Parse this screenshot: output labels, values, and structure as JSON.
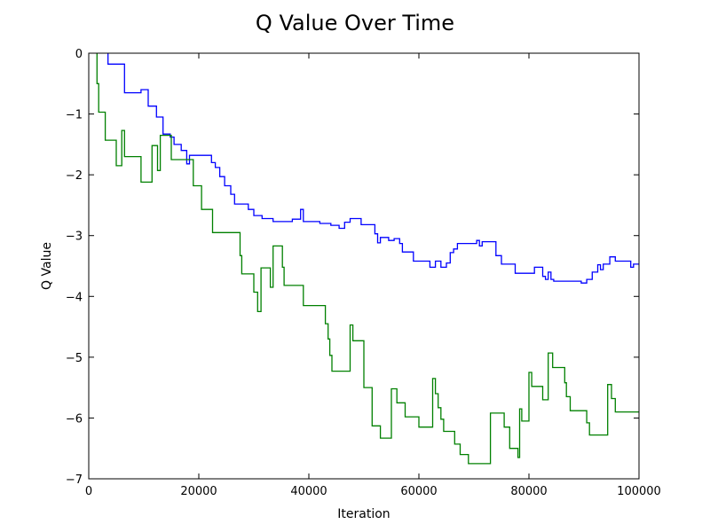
{
  "chart_data": {
    "type": "line",
    "title": "Q Value Over Time",
    "xlabel": "Iteration",
    "ylabel": "Q Value",
    "xlim": [
      0,
      100000
    ],
    "ylim": [
      -7,
      0
    ],
    "xticks": [
      0,
      20000,
      40000,
      60000,
      80000,
      100000
    ],
    "xtick_labels": [
      "0",
      "20000",
      "40000",
      "60000",
      "80000",
      "100000"
    ],
    "yticks": [
      0,
      -1,
      -2,
      -3,
      -4,
      -5,
      -6,
      -7
    ],
    "ytick_labels": [
      "0",
      "−1",
      "−2",
      "−3",
      "−4",
      "−5",
      "−6",
      "−7"
    ],
    "grid": false,
    "legend": "none",
    "step": true,
    "series": [
      {
        "color": "#0000ff",
        "points": [
          [
            3500,
            0
          ],
          [
            3500,
            -0.18
          ],
          [
            6500,
            -0.18
          ],
          [
            6500,
            -0.65
          ],
          [
            9500,
            -0.65
          ],
          [
            9500,
            -0.6
          ],
          [
            10800,
            -0.6
          ],
          [
            10800,
            -0.87
          ],
          [
            12300,
            -0.87
          ],
          [
            12300,
            -1.05
          ],
          [
            13500,
            -1.05
          ],
          [
            13500,
            -1.33
          ],
          [
            14800,
            -1.33
          ],
          [
            14800,
            -1.38
          ],
          [
            15500,
            -1.38
          ],
          [
            15500,
            -1.5
          ],
          [
            16800,
            -1.5
          ],
          [
            16800,
            -1.6
          ],
          [
            17800,
            -1.6
          ],
          [
            17800,
            -1.82
          ],
          [
            18300,
            -1.82
          ],
          [
            18300,
            -1.68
          ],
          [
            22300,
            -1.68
          ],
          [
            22300,
            -1.8
          ],
          [
            23000,
            -1.8
          ],
          [
            23000,
            -1.88
          ],
          [
            23800,
            -1.88
          ],
          [
            23800,
            -2.03
          ],
          [
            24700,
            -2.03
          ],
          [
            24700,
            -2.18
          ],
          [
            25800,
            -2.18
          ],
          [
            25800,
            -2.32
          ],
          [
            26500,
            -2.32
          ],
          [
            26500,
            -2.48
          ],
          [
            29000,
            -2.48
          ],
          [
            29000,
            -2.57
          ],
          [
            30000,
            -2.57
          ],
          [
            30000,
            -2.67
          ],
          [
            31500,
            -2.67
          ],
          [
            31500,
            -2.72
          ],
          [
            33500,
            -2.72
          ],
          [
            33500,
            -2.77
          ],
          [
            37000,
            -2.77
          ],
          [
            37000,
            -2.73
          ],
          [
            38500,
            -2.73
          ],
          [
            38500,
            -2.57
          ],
          [
            39000,
            -2.57
          ],
          [
            39000,
            -2.77
          ],
          [
            42000,
            -2.77
          ],
          [
            42000,
            -2.8
          ],
          [
            44000,
            -2.8
          ],
          [
            44000,
            -2.83
          ],
          [
            45500,
            -2.83
          ],
          [
            45500,
            -2.88
          ],
          [
            46500,
            -2.88
          ],
          [
            46500,
            -2.78
          ],
          [
            47500,
            -2.78
          ],
          [
            47500,
            -2.72
          ],
          [
            49500,
            -2.72
          ],
          [
            49500,
            -2.82
          ],
          [
            52000,
            -2.82
          ],
          [
            52000,
            -2.97
          ],
          [
            52500,
            -2.97
          ],
          [
            52500,
            -3.12
          ],
          [
            53000,
            -3.12
          ],
          [
            53000,
            -3.03
          ],
          [
            54500,
            -3.03
          ],
          [
            54500,
            -3.08
          ],
          [
            55500,
            -3.08
          ],
          [
            55500,
            -3.05
          ],
          [
            56500,
            -3.05
          ],
          [
            56500,
            -3.13
          ],
          [
            57000,
            -3.13
          ],
          [
            57000,
            -3.27
          ],
          [
            59000,
            -3.27
          ],
          [
            59000,
            -3.42
          ],
          [
            62000,
            -3.42
          ],
          [
            62000,
            -3.52
          ],
          [
            63000,
            -3.52
          ],
          [
            63000,
            -3.42
          ],
          [
            64000,
            -3.42
          ],
          [
            64000,
            -3.52
          ],
          [
            65000,
            -3.52
          ],
          [
            65000,
            -3.45
          ],
          [
            65700,
            -3.45
          ],
          [
            65700,
            -3.28
          ],
          [
            66300,
            -3.28
          ],
          [
            66300,
            -3.22
          ],
          [
            67000,
            -3.22
          ],
          [
            67000,
            -3.13
          ],
          [
            70500,
            -3.13
          ],
          [
            70500,
            -3.08
          ],
          [
            71000,
            -3.08
          ],
          [
            71000,
            -3.17
          ],
          [
            71500,
            -3.17
          ],
          [
            71500,
            -3.1
          ],
          [
            74000,
            -3.1
          ],
          [
            74000,
            -3.33
          ],
          [
            75000,
            -3.33
          ],
          [
            75000,
            -3.47
          ],
          [
            77500,
            -3.47
          ],
          [
            77500,
            -3.62
          ],
          [
            81000,
            -3.62
          ],
          [
            81000,
            -3.52
          ],
          [
            82500,
            -3.52
          ],
          [
            82500,
            -3.67
          ],
          [
            83000,
            -3.67
          ],
          [
            83000,
            -3.72
          ],
          [
            83500,
            -3.72
          ],
          [
            83500,
            -3.6
          ],
          [
            84000,
            -3.6
          ],
          [
            84000,
            -3.72
          ],
          [
            84500,
            -3.72
          ],
          [
            84500,
            -3.75
          ],
          [
            89500,
            -3.75
          ],
          [
            89500,
            -3.78
          ],
          [
            90500,
            -3.78
          ],
          [
            90500,
            -3.72
          ],
          [
            91500,
            -3.72
          ],
          [
            91500,
            -3.6
          ],
          [
            92500,
            -3.6
          ],
          [
            92500,
            -3.48
          ],
          [
            93000,
            -3.48
          ],
          [
            93000,
            -3.56
          ],
          [
            93500,
            -3.56
          ],
          [
            93500,
            -3.47
          ],
          [
            94700,
            -3.47
          ],
          [
            94700,
            -3.35
          ],
          [
            95700,
            -3.35
          ],
          [
            95700,
            -3.42
          ],
          [
            98500,
            -3.42
          ],
          [
            98500,
            -3.52
          ],
          [
            99000,
            -3.52
          ],
          [
            99000,
            -3.47
          ],
          [
            100000,
            -3.47
          ]
        ]
      },
      {
        "color": "#008000",
        "points": [
          [
            1500,
            0
          ],
          [
            1500,
            -0.5
          ],
          [
            1800,
            -0.5
          ],
          [
            1800,
            -0.97
          ],
          [
            3000,
            -0.97
          ],
          [
            3000,
            -1.43
          ],
          [
            5000,
            -1.43
          ],
          [
            5000,
            -1.85
          ],
          [
            6000,
            -1.85
          ],
          [
            6000,
            -1.27
          ],
          [
            6500,
            -1.27
          ],
          [
            6500,
            -1.7
          ],
          [
            9500,
            -1.7
          ],
          [
            9500,
            -2.12
          ],
          [
            11500,
            -2.12
          ],
          [
            11500,
            -1.52
          ],
          [
            12500,
            -1.52
          ],
          [
            12500,
            -1.93
          ],
          [
            13000,
            -1.93
          ],
          [
            13000,
            -1.35
          ],
          [
            15000,
            -1.35
          ],
          [
            15000,
            -1.75
          ],
          [
            19000,
            -1.75
          ],
          [
            19000,
            -2.18
          ],
          [
            20500,
            -2.18
          ],
          [
            20500,
            -2.57
          ],
          [
            22500,
            -2.57
          ],
          [
            22500,
            -2.95
          ],
          [
            27500,
            -2.95
          ],
          [
            27500,
            -3.33
          ],
          [
            27800,
            -3.33
          ],
          [
            27800,
            -3.63
          ],
          [
            30000,
            -3.63
          ],
          [
            30000,
            -3.93
          ],
          [
            30700,
            -3.93
          ],
          [
            30700,
            -4.25
          ],
          [
            31300,
            -4.25
          ],
          [
            31300,
            -3.53
          ],
          [
            33000,
            -3.53
          ],
          [
            33000,
            -3.85
          ],
          [
            33500,
            -3.85
          ],
          [
            33500,
            -3.17
          ],
          [
            35200,
            -3.17
          ],
          [
            35200,
            -3.52
          ],
          [
            35500,
            -3.52
          ],
          [
            35500,
            -3.82
          ],
          [
            39000,
            -3.82
          ],
          [
            39000,
            -4.15
          ],
          [
            43000,
            -4.15
          ],
          [
            43000,
            -4.45
          ],
          [
            43500,
            -4.45
          ],
          [
            43500,
            -4.7
          ],
          [
            43800,
            -4.7
          ],
          [
            43800,
            -4.97
          ],
          [
            44200,
            -4.97
          ],
          [
            44200,
            -5.23
          ],
          [
            47500,
            -5.23
          ],
          [
            47500,
            -4.47
          ],
          [
            48000,
            -4.47
          ],
          [
            48000,
            -4.73
          ],
          [
            50000,
            -4.73
          ],
          [
            50000,
            -5.5
          ],
          [
            51500,
            -5.5
          ],
          [
            51500,
            -6.13
          ],
          [
            53000,
            -6.13
          ],
          [
            53000,
            -6.33
          ],
          [
            55000,
            -6.33
          ],
          [
            55000,
            -5.52
          ],
          [
            56000,
            -5.52
          ],
          [
            56000,
            -5.75
          ],
          [
            57500,
            -5.75
          ],
          [
            57500,
            -5.98
          ],
          [
            60000,
            -5.98
          ],
          [
            60000,
            -6.15
          ],
          [
            62500,
            -6.15
          ],
          [
            62500,
            -5.35
          ],
          [
            63000,
            -5.35
          ],
          [
            63000,
            -5.6
          ],
          [
            63500,
            -5.6
          ],
          [
            63500,
            -5.83
          ],
          [
            64000,
            -5.83
          ],
          [
            64000,
            -6.02
          ],
          [
            64500,
            -6.02
          ],
          [
            64500,
            -6.22
          ],
          [
            66500,
            -6.22
          ],
          [
            66500,
            -6.43
          ],
          [
            67500,
            -6.43
          ],
          [
            67500,
            -6.6
          ],
          [
            69000,
            -6.6
          ],
          [
            69000,
            -6.75
          ],
          [
            73000,
            -6.75
          ],
          [
            73000,
            -5.92
          ],
          [
            75500,
            -5.92
          ],
          [
            75500,
            -6.15
          ],
          [
            76500,
            -6.15
          ],
          [
            76500,
            -6.5
          ],
          [
            78000,
            -6.5
          ],
          [
            78000,
            -6.65
          ],
          [
            78300,
            -6.65
          ],
          [
            78300,
            -5.85
          ],
          [
            78700,
            -5.85
          ],
          [
            78700,
            -6.05
          ],
          [
            80000,
            -6.05
          ],
          [
            80000,
            -5.25
          ],
          [
            80500,
            -5.25
          ],
          [
            80500,
            -5.48
          ],
          [
            82500,
            -5.48
          ],
          [
            82500,
            -5.7
          ],
          [
            83500,
            -5.7
          ],
          [
            83500,
            -4.93
          ],
          [
            84300,
            -4.93
          ],
          [
            84300,
            -5.17
          ],
          [
            86500,
            -5.17
          ],
          [
            86500,
            -5.42
          ],
          [
            86800,
            -5.42
          ],
          [
            86800,
            -5.65
          ],
          [
            87500,
            -5.65
          ],
          [
            87500,
            -5.88
          ],
          [
            90500,
            -5.88
          ],
          [
            90500,
            -6.08
          ],
          [
            91000,
            -6.08
          ],
          [
            91000,
            -6.28
          ],
          [
            94300,
            -6.28
          ],
          [
            94300,
            -5.45
          ],
          [
            95000,
            -5.45
          ],
          [
            95000,
            -5.68
          ],
          [
            95700,
            -5.68
          ],
          [
            95700,
            -5.9
          ],
          [
            100000,
            -5.9
          ]
        ]
      }
    ]
  }
}
